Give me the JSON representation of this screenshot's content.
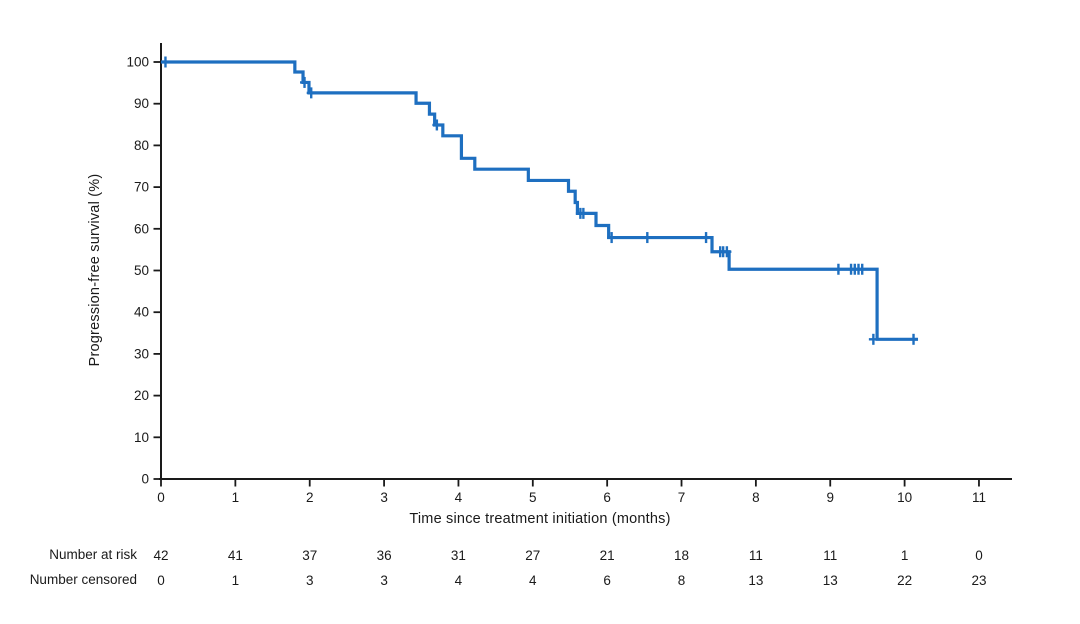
{
  "figure": {
    "background": "#ffffff",
    "axis_color": "#1a1a1a",
    "text_color": "#1a1a1a"
  },
  "chart_data": {
    "type": "line",
    "subtype": "kaplan-meier-step-curve",
    "title": "",
    "xlabel": "Time since treatment initiation (months)",
    "ylabel": "Progression-free survival (%)",
    "xlim": [
      0,
      11.5
    ],
    "ylim": [
      0,
      100
    ],
    "x_ticks": [
      0,
      1,
      2,
      3,
      4,
      5,
      6,
      7,
      8,
      9,
      10,
      11
    ],
    "y_ticks": [
      0,
      10,
      20,
      30,
      40,
      50,
      60,
      70,
      80,
      90,
      100
    ],
    "grid": false,
    "legend_position": "none",
    "line_color": "#1e6fc0",
    "series": [
      {
        "name": "Progression-free survival",
        "start": [
          0,
          100
        ],
        "steps": [
          [
            1.8,
            97.6
          ],
          [
            1.91,
            95.1
          ],
          [
            1.99,
            92.6
          ],
          [
            3.43,
            90.1
          ],
          [
            3.61,
            87.5
          ],
          [
            3.68,
            84.9
          ],
          [
            3.79,
            82.3
          ],
          [
            4.04,
            76.9
          ],
          [
            4.22,
            74.3
          ],
          [
            4.94,
            71.6
          ],
          [
            5.48,
            69.0
          ],
          [
            5.57,
            66.3
          ],
          [
            5.6,
            63.7
          ],
          [
            5.85,
            60.8
          ],
          [
            6.02,
            57.9
          ],
          [
            7.41,
            54.5
          ],
          [
            7.64,
            50.3
          ],
          [
            9.63,
            33.5
          ]
        ],
        "end_time": 10.18,
        "censor_marks": [
          [
            0.06,
            100
          ],
          [
            1.93,
            95.1
          ],
          [
            2.02,
            92.6
          ],
          [
            3.71,
            84.9
          ],
          [
            5.64,
            63.7
          ],
          [
            5.68,
            63.7
          ],
          [
            6.06,
            57.9
          ],
          [
            6.54,
            57.9
          ],
          [
            7.33,
            57.9
          ],
          [
            7.52,
            54.5
          ],
          [
            7.56,
            54.5
          ],
          [
            7.61,
            54.5
          ],
          [
            9.11,
            50.3
          ],
          [
            9.28,
            50.3
          ],
          [
            9.33,
            50.3
          ],
          [
            9.38,
            50.3
          ],
          [
            9.43,
            50.3
          ],
          [
            9.58,
            33.5
          ],
          [
            10.12,
            33.5
          ]
        ]
      }
    ],
    "risk_table": {
      "times": [
        0,
        1,
        2,
        3,
        4,
        5,
        6,
        7,
        8,
        9,
        10,
        11
      ],
      "rows": [
        {
          "label": "Number at risk",
          "values": [
            42,
            41,
            37,
            36,
            31,
            27,
            21,
            18,
            11,
            11,
            1,
            0
          ]
        },
        {
          "label": "Number censored",
          "values": [
            0,
            1,
            3,
            3,
            4,
            4,
            6,
            8,
            13,
            13,
            22,
            23
          ]
        }
      ]
    }
  }
}
